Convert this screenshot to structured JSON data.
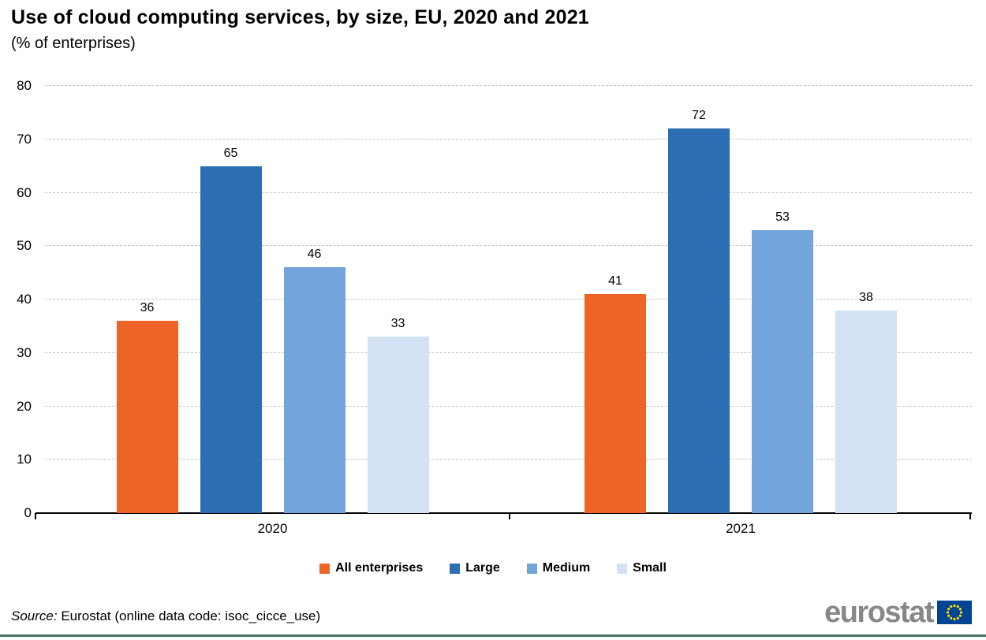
{
  "title": "Use of cloud computing services, by size, EU, 2020 and 2021",
  "subtitle": "(% of enterprises)",
  "chart_data": {
    "type": "bar",
    "categories": [
      "2020",
      "2021"
    ],
    "series": [
      {
        "name": "All enterprises",
        "color": "#EE6426",
        "values": [
          36,
          41
        ]
      },
      {
        "name": "Large",
        "color": "#2B6EB4",
        "values": [
          65,
          72
        ]
      },
      {
        "name": "Medium",
        "color": "#72A5DC",
        "values": [
          46,
          53
        ]
      },
      {
        "name": "Small",
        "color": "#D4E3F4",
        "values": [
          33,
          38
        ]
      }
    ],
    "ylim": [
      0,
      80
    ],
    "ytick_step": 10,
    "yticks": [
      0,
      10,
      20,
      30,
      40,
      50,
      60,
      70,
      80
    ],
    "grid": "horizontal-dashed",
    "bar_labels": true,
    "legend_position": "bottom"
  },
  "legend": {
    "items": [
      "All enterprises",
      "Large",
      "Medium",
      "Small"
    ]
  },
  "source": {
    "prefix": "Source:",
    "text": " Eurostat (online data code: isoc_cicce_use)"
  },
  "logo": {
    "text": "eurostat"
  },
  "colors": {
    "axis": "#000000",
    "grid": "#c4c4c4",
    "bottom_rule": "#44755F",
    "logo_text": "#878787",
    "flag_bg": "#004494",
    "flag_stars": "#FFDD00"
  }
}
